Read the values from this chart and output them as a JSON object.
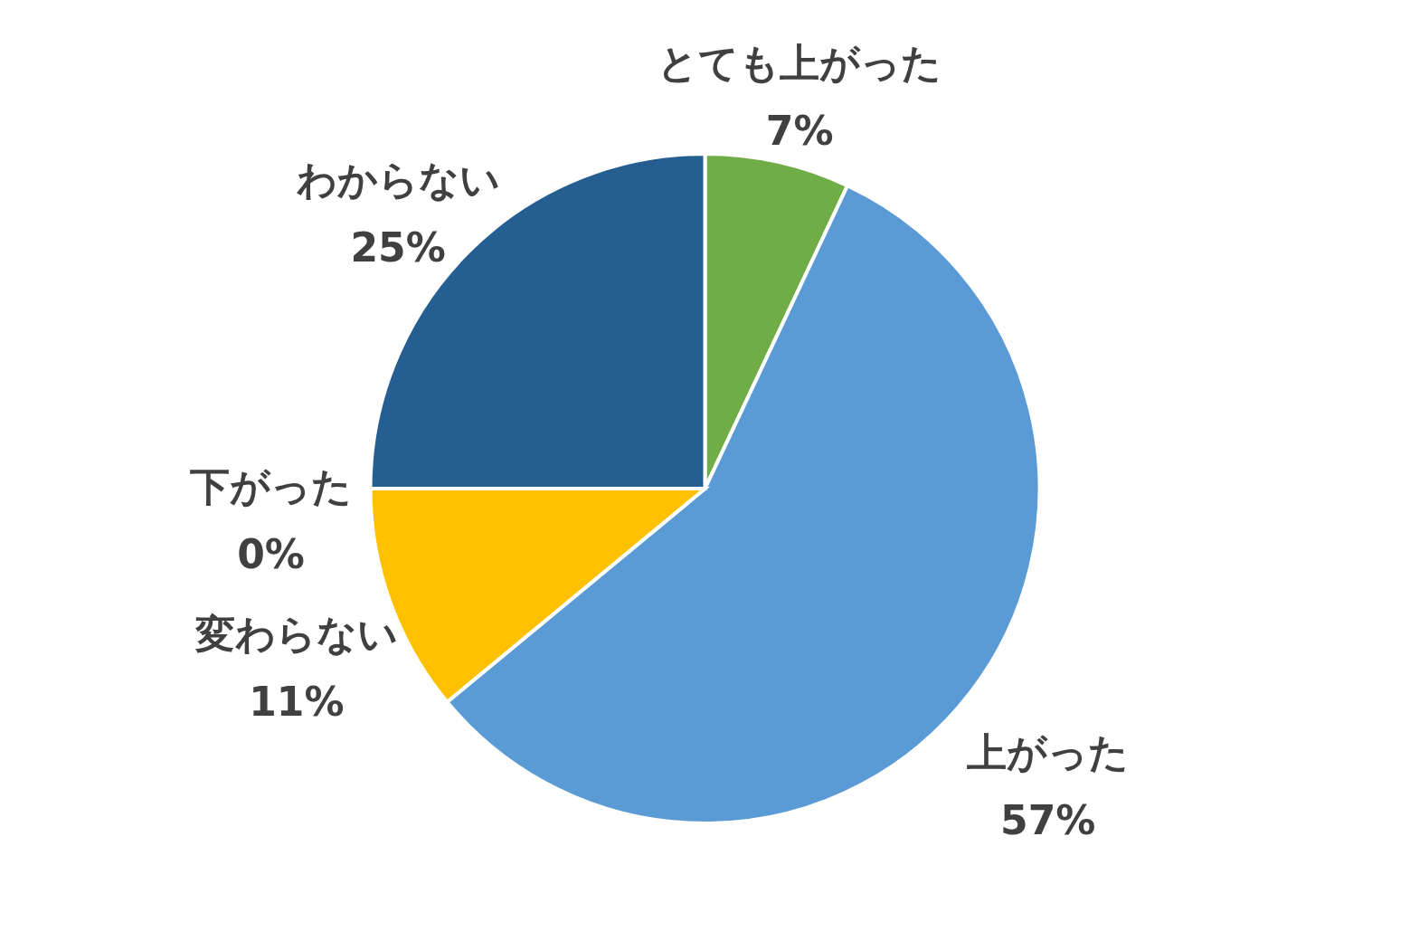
{
  "chart_data": {
    "type": "pie",
    "categories": [
      "とても上がった",
      "上がった",
      "変わらない",
      "下がった",
      "わからない"
    ],
    "values": [
      7,
      57,
      11,
      0,
      25
    ],
    "value_labels": [
      "7%",
      "57%",
      "11%",
      "0%",
      "25%"
    ],
    "colors": [
      "#70ad47",
      "#5b9bd5",
      "#ffc000",
      "#a5a5a5",
      "#255e91"
    ]
  }
}
